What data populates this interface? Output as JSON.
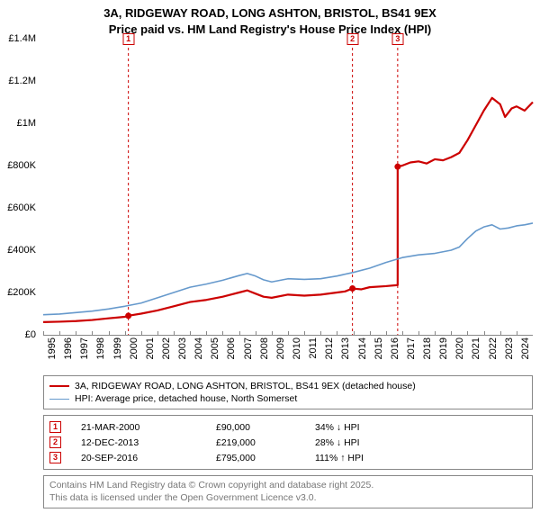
{
  "title_line1": "3A, RIDGEWAY ROAD, LONG ASHTON, BRISTOL, BS41 9EX",
  "title_line2": "Price paid vs. HM Land Registry's House Price Index (HPI)",
  "chart": {
    "type": "line",
    "background_color": "#ffffff",
    "xlim": [
      1995,
      2025
    ],
    "ylim": [
      0,
      1400000
    ],
    "y_ticks": [
      {
        "v": 0,
        "label": "£0"
      },
      {
        "v": 200000,
        "label": "£200K"
      },
      {
        "v": 400000,
        "label": "£400K"
      },
      {
        "v": 600000,
        "label": "£600K"
      },
      {
        "v": 800000,
        "label": "£800K"
      },
      {
        "v": 1000000,
        "label": "£1M"
      },
      {
        "v": 1200000,
        "label": "£1.2M"
      },
      {
        "v": 1400000,
        "label": "£1.4M"
      }
    ],
    "x_ticks": [
      1995,
      1996,
      1997,
      1998,
      1999,
      2000,
      2001,
      2002,
      2003,
      2004,
      2005,
      2006,
      2007,
      2008,
      2009,
      2010,
      2011,
      2012,
      2013,
      2014,
      2015,
      2016,
      2017,
      2018,
      2019,
      2020,
      2021,
      2022,
      2023,
      2024
    ],
    "series": [
      {
        "name": "price_paid",
        "color": "#cc0000",
        "width": 2.2,
        "points": [
          [
            1995,
            60000
          ],
          [
            1996,
            62000
          ],
          [
            1997,
            65000
          ],
          [
            1998,
            70000
          ],
          [
            1999,
            78000
          ],
          [
            2000,
            85000
          ],
          [
            2000.22,
            90000
          ],
          [
            2001,
            100000
          ],
          [
            2002,
            115000
          ],
          [
            2003,
            135000
          ],
          [
            2004,
            155000
          ],
          [
            2005,
            165000
          ],
          [
            2006,
            180000
          ],
          [
            2007,
            200000
          ],
          [
            2007.5,
            210000
          ],
          [
            2008,
            195000
          ],
          [
            2008.5,
            180000
          ],
          [
            2009,
            175000
          ],
          [
            2010,
            190000
          ],
          [
            2011,
            185000
          ],
          [
            2012,
            190000
          ],
          [
            2013,
            200000
          ],
          [
            2013.5,
            205000
          ],
          [
            2013.95,
            219000
          ],
          [
            2014.5,
            215000
          ],
          [
            2015,
            225000
          ],
          [
            2016,
            230000
          ],
          [
            2016.72,
            235000
          ],
          [
            2016.72,
            795000
          ],
          [
            2017,
            800000
          ],
          [
            2017.5,
            815000
          ],
          [
            2018,
            820000
          ],
          [
            2018.5,
            810000
          ],
          [
            2019,
            830000
          ],
          [
            2019.5,
            825000
          ],
          [
            2020,
            840000
          ],
          [
            2020.5,
            860000
          ],
          [
            2021,
            920000
          ],
          [
            2021.5,
            990000
          ],
          [
            2022,
            1060000
          ],
          [
            2022.5,
            1120000
          ],
          [
            2023,
            1090000
          ],
          [
            2023.3,
            1030000
          ],
          [
            2023.7,
            1070000
          ],
          [
            2024,
            1080000
          ],
          [
            2024.5,
            1060000
          ],
          [
            2025,
            1100000
          ]
        ],
        "sale_dots": [
          [
            2000.22,
            90000
          ],
          [
            2013.95,
            219000
          ],
          [
            2016.72,
            795000
          ]
        ]
      },
      {
        "name": "hpi",
        "color": "#6699cc",
        "width": 1.6,
        "points": [
          [
            1995,
            95000
          ],
          [
            1996,
            98000
          ],
          [
            1997,
            105000
          ],
          [
            1998,
            112000
          ],
          [
            1999,
            122000
          ],
          [
            2000,
            135000
          ],
          [
            2001,
            150000
          ],
          [
            2002,
            175000
          ],
          [
            2003,
            200000
          ],
          [
            2004,
            225000
          ],
          [
            2005,
            240000
          ],
          [
            2006,
            258000
          ],
          [
            2007,
            280000
          ],
          [
            2007.5,
            290000
          ],
          [
            2008,
            278000
          ],
          [
            2008.5,
            260000
          ],
          [
            2009,
            250000
          ],
          [
            2010,
            265000
          ],
          [
            2011,
            262000
          ],
          [
            2012,
            265000
          ],
          [
            2013,
            278000
          ],
          [
            2014,
            295000
          ],
          [
            2015,
            315000
          ],
          [
            2016,
            342000
          ],
          [
            2017,
            365000
          ],
          [
            2018,
            378000
          ],
          [
            2019,
            385000
          ],
          [
            2020,
            400000
          ],
          [
            2020.5,
            415000
          ],
          [
            2021,
            455000
          ],
          [
            2021.5,
            490000
          ],
          [
            2022,
            510000
          ],
          [
            2022.5,
            520000
          ],
          [
            2023,
            500000
          ],
          [
            2023.5,
            505000
          ],
          [
            2024,
            515000
          ],
          [
            2024.5,
            520000
          ],
          [
            2025,
            528000
          ]
        ]
      }
    ],
    "markers": [
      {
        "n": "1",
        "x": 2000.22,
        "top_offset": -6
      },
      {
        "n": "2",
        "x": 2013.95,
        "top_offset": -6
      },
      {
        "n": "3",
        "x": 2016.72,
        "top_offset": -6
      }
    ],
    "marker_line_color": "#cc0000",
    "marker_dash": "3,3"
  },
  "legend": {
    "items": [
      {
        "color": "#cc0000",
        "width": 2.2,
        "label": "3A, RIDGEWAY ROAD, LONG ASHTON, BRISTOL, BS41 9EX (detached house)"
      },
      {
        "color": "#6699cc",
        "width": 1.6,
        "label": "HPI: Average price, detached house, North Somerset"
      }
    ]
  },
  "sales": [
    {
      "n": "1",
      "date": "21-MAR-2000",
      "price": "£90,000",
      "delta": "34% ↓ HPI"
    },
    {
      "n": "2",
      "date": "12-DEC-2013",
      "price": "£219,000",
      "delta": "28% ↓ HPI"
    },
    {
      "n": "3",
      "date": "20-SEP-2016",
      "price": "£795,000",
      "delta": "111% ↑ HPI"
    }
  ],
  "attribution_line1": "Contains HM Land Registry data © Crown copyright and database right 2025.",
  "attribution_line2": "This data is licensed under the Open Government Licence v3.0."
}
